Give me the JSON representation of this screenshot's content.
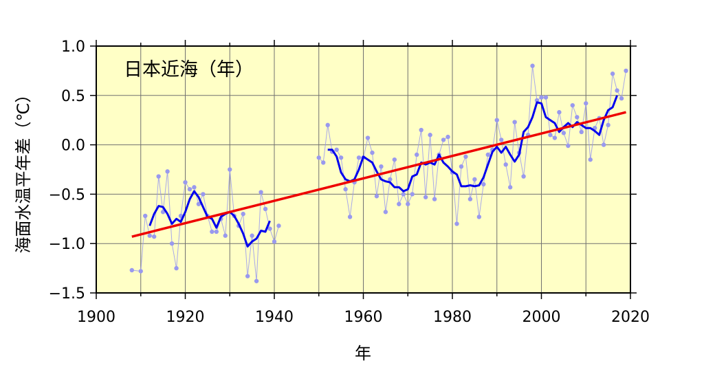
{
  "chart_data": {
    "type": "line",
    "title": "日本近海（年）",
    "xlabel": "年",
    "ylabel": "海面水温平年差（℃）",
    "xlim": [
      1900,
      2020
    ],
    "ylim": [
      -1.5,
      1.0
    ],
    "x_ticks": [
      1900,
      1920,
      1940,
      1960,
      1980,
      2000,
      2020
    ],
    "x_tick_labels": [
      "1900",
      "1920",
      "1940",
      "1960",
      "1980",
      "2000",
      "2020"
    ],
    "y_ticks": [
      1.0,
      0.5,
      0.0,
      -0.5,
      -1.0,
      -1.5
    ],
    "y_tick_labels": [
      "1.0",
      "0.5",
      "0.0",
      "−0.5",
      "−1.0",
      "−1.5"
    ],
    "grid": true,
    "background": "#ffffc6",
    "colors": {
      "annual": "#9999ee",
      "moving_average": "#0000ee",
      "trend": "#ee0000"
    },
    "series": [
      {
        "kind": "annual",
        "segments": [
          [
            [
              1908,
              -1.27
            ],
            [
              1910,
              -1.28
            ],
            [
              1911,
              -0.72
            ],
            [
              1912,
              -0.92
            ],
            [
              1913,
              -0.93
            ],
            [
              1914,
              -0.32
            ],
            [
              1915,
              -0.68
            ],
            [
              1916,
              -0.27
            ],
            [
              1917,
              -1.0
            ],
            [
              1918,
              -1.25
            ],
            [
              1919,
              -0.72
            ],
            [
              1920,
              -0.38
            ],
            [
              1921,
              -0.45
            ],
            [
              1922,
              -0.43
            ],
            [
              1923,
              -0.6
            ],
            [
              1924,
              -0.5
            ],
            [
              1925,
              -0.72
            ],
            [
              1926,
              -0.88
            ],
            [
              1927,
              -0.88
            ],
            [
              1928,
              -0.75
            ],
            [
              1929,
              -0.92
            ],
            [
              1930,
              -0.25
            ],
            [
              1931,
              -0.72
            ],
            [
              1932,
              -0.82
            ],
            [
              1933,
              -0.7
            ],
            [
              1934,
              -1.33
            ],
            [
              1935,
              -0.92
            ],
            [
              1936,
              -1.38
            ],
            [
              1937,
              -0.48
            ],
            [
              1938,
              -0.65
            ],
            [
              1939,
              -0.85
            ],
            [
              1940,
              -0.98
            ],
            [
              1941,
              -0.82
            ]
          ],
          [
            [
              1950,
              -0.13
            ],
            [
              1951,
              -0.18
            ],
            [
              1952,
              0.2
            ],
            [
              1953,
              -0.07
            ],
            [
              1954,
              -0.05
            ],
            [
              1955,
              -0.13
            ],
            [
              1956,
              -0.45
            ],
            [
              1957,
              -0.73
            ],
            [
              1958,
              -0.38
            ],
            [
              1959,
              -0.13
            ],
            [
              1960,
              -0.13
            ],
            [
              1961,
              0.07
            ],
            [
              1962,
              -0.08
            ],
            [
              1963,
              -0.52
            ],
            [
              1964,
              -0.22
            ],
            [
              1965,
              -0.68
            ],
            [
              1966,
              -0.35
            ],
            [
              1967,
              -0.15
            ],
            [
              1968,
              -0.6
            ],
            [
              1969,
              -0.5
            ],
            [
              1970,
              -0.6
            ],
            [
              1971,
              -0.5
            ],
            [
              1972,
              -0.1
            ],
            [
              1973,
              0.15
            ],
            [
              1974,
              -0.53
            ],
            [
              1975,
              0.1
            ],
            [
              1976,
              -0.55
            ],
            [
              1977,
              -0.1
            ],
            [
              1978,
              0.05
            ],
            [
              1979,
              0.08
            ],
            [
              1980,
              -0.28
            ],
            [
              1981,
              -0.8
            ],
            [
              1982,
              -0.22
            ],
            [
              1983,
              -0.12
            ],
            [
              1984,
              -0.55
            ],
            [
              1985,
              -0.35
            ],
            [
              1986,
              -0.73
            ],
            [
              1987,
              -0.4
            ],
            [
              1988,
              -0.1
            ],
            [
              1989,
              -0.05
            ],
            [
              1990,
              0.25
            ],
            [
              1991,
              0.05
            ],
            [
              1992,
              -0.2
            ],
            [
              1993,
              -0.43
            ],
            [
              1994,
              0.23
            ],
            [
              1995,
              -0.08
            ],
            [
              1996,
              -0.32
            ],
            [
              1997,
              0.1
            ],
            [
              1998,
              0.8
            ],
            [
              1999,
              0.45
            ],
            [
              2000,
              0.48
            ],
            [
              2001,
              0.48
            ],
            [
              2002,
              0.1
            ],
            [
              2003,
              0.07
            ],
            [
              2004,
              0.33
            ],
            [
              2005,
              0.12
            ],
            [
              2006,
              -0.01
            ],
            [
              2007,
              0.4
            ],
            [
              2008,
              0.28
            ],
            [
              2009,
              0.13
            ],
            [
              2010,
              0.42
            ],
            [
              2011,
              -0.15
            ],
            [
              2012,
              0.17
            ],
            [
              2013,
              0.27
            ],
            [
              2014,
              0.0
            ],
            [
              2015,
              0.2
            ],
            [
              2016,
              0.72
            ],
            [
              2017,
              0.55
            ],
            [
              2018,
              0.47
            ],
            [
              2019,
              0.75
            ]
          ]
        ]
      },
      {
        "kind": "moving_average",
        "segments": [
          [
            [
              1912,
              -0.82
            ],
            [
              1913,
              -0.7
            ],
            [
              1914,
              -0.62
            ],
            [
              1915,
              -0.63
            ],
            [
              1916,
              -0.7
            ],
            [
              1917,
              -0.8
            ],
            [
              1918,
              -0.75
            ],
            [
              1919,
              -0.78
            ],
            [
              1920,
              -0.68
            ],
            [
              1921,
              -0.55
            ],
            [
              1922,
              -0.47
            ],
            [
              1923,
              -0.53
            ],
            [
              1924,
              -0.63
            ],
            [
              1925,
              -0.73
            ],
            [
              1926,
              -0.75
            ],
            [
              1927,
              -0.84
            ],
            [
              1928,
              -0.73
            ],
            [
              1929,
              -0.7
            ],
            [
              1930,
              -0.68
            ],
            [
              1931,
              -0.72
            ],
            [
              1932,
              -0.8
            ],
            [
              1933,
              -0.9
            ],
            [
              1934,
              -1.03
            ],
            [
              1935,
              -0.98
            ],
            [
              1936,
              -0.95
            ],
            [
              1937,
              -0.87
            ],
            [
              1938,
              -0.88
            ],
            [
              1939,
              -0.77
            ]
          ],
          [
            [
              1952,
              -0.05
            ],
            [
              1953,
              -0.05
            ],
            [
              1954,
              -0.12
            ],
            [
              1955,
              -0.28
            ],
            [
              1956,
              -0.35
            ],
            [
              1957,
              -0.37
            ],
            [
              1958,
              -0.35
            ],
            [
              1959,
              -0.25
            ],
            [
              1960,
              -0.12
            ],
            [
              1961,
              -0.15
            ],
            [
              1962,
              -0.18
            ],
            [
              1963,
              -0.27
            ],
            [
              1964,
              -0.35
            ],
            [
              1965,
              -0.37
            ],
            [
              1966,
              -0.38
            ],
            [
              1967,
              -0.43
            ],
            [
              1968,
              -0.43
            ],
            [
              1969,
              -0.47
            ],
            [
              1970,
              -0.45
            ],
            [
              1971,
              -0.32
            ],
            [
              1972,
              -0.3
            ],
            [
              1973,
              -0.18
            ],
            [
              1974,
              -0.2
            ],
            [
              1975,
              -0.18
            ],
            [
              1976,
              -0.2
            ],
            [
              1977,
              -0.1
            ],
            [
              1978,
              -0.18
            ],
            [
              1979,
              -0.22
            ],
            [
              1980,
              -0.27
            ],
            [
              1981,
              -0.3
            ],
            [
              1982,
              -0.42
            ],
            [
              1983,
              -0.42
            ],
            [
              1984,
              -0.41
            ],
            [
              1985,
              -0.42
            ],
            [
              1986,
              -0.41
            ],
            [
              1987,
              -0.33
            ],
            [
              1988,
              -0.2
            ],
            [
              1989,
              -0.07
            ],
            [
              1990,
              -0.02
            ],
            [
              1991,
              -0.08
            ],
            [
              1992,
              -0.02
            ],
            [
              1993,
              -0.1
            ],
            [
              1994,
              -0.17
            ],
            [
              1995,
              -0.1
            ],
            [
              1996,
              0.13
            ],
            [
              1997,
              0.18
            ],
            [
              1998,
              0.28
            ],
            [
              1999,
              0.43
            ],
            [
              2000,
              0.42
            ],
            [
              2001,
              0.28
            ],
            [
              2002,
              0.25
            ],
            [
              2003,
              0.22
            ],
            [
              2004,
              0.13
            ],
            [
              2005,
              0.18
            ],
            [
              2006,
              0.22
            ],
            [
              2007,
              0.18
            ],
            [
              2008,
              0.23
            ],
            [
              2009,
              0.2
            ],
            [
              2010,
              0.17
            ],
            [
              2011,
              0.17
            ],
            [
              2012,
              0.14
            ],
            [
              2013,
              0.1
            ],
            [
              2014,
              0.25
            ],
            [
              2015,
              0.35
            ],
            [
              2016,
              0.38
            ],
            [
              2017,
              0.5
            ]
          ]
        ]
      },
      {
        "kind": "trend",
        "points": [
          [
            1908,
            -0.93
          ],
          [
            2019,
            0.33
          ]
        ]
      }
    ]
  }
}
